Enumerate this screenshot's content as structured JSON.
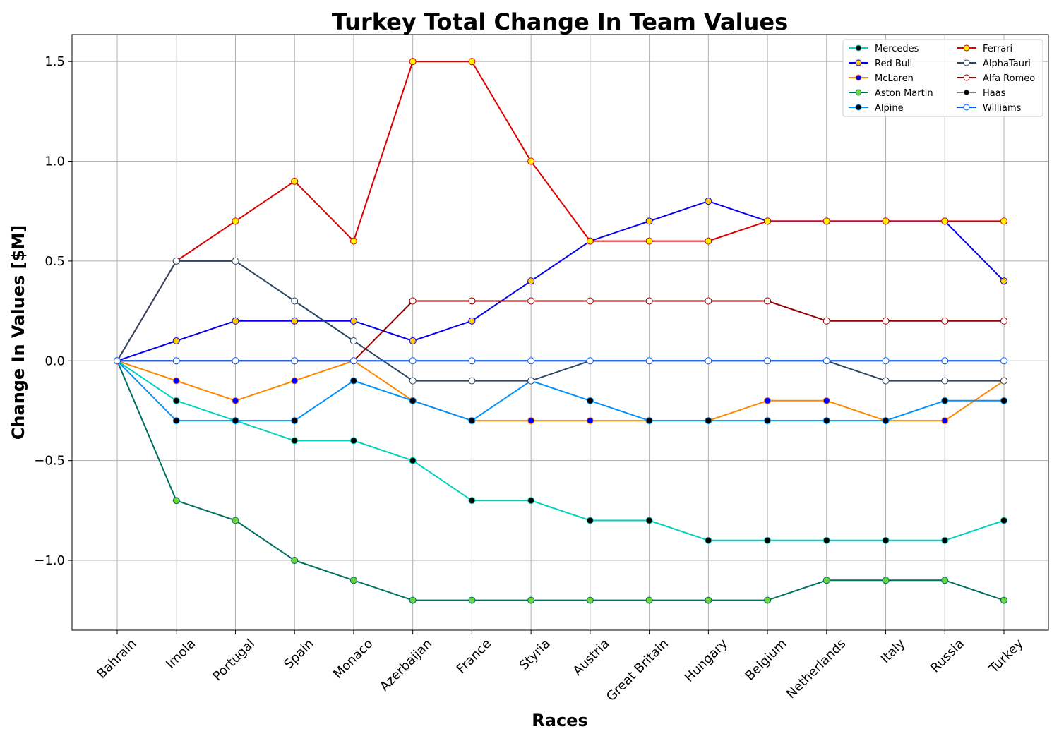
{
  "chart_data": {
    "type": "line",
    "title": "Turkey Total Change In Team Values",
    "xlabel": "Races",
    "ylabel": "Change In Values [$M]",
    "categories": [
      "Bahrain",
      "Imola",
      "Portugal",
      "Spain",
      "Monaco",
      "Azerbaijan",
      "France",
      "Styria",
      "Austria",
      "Great Britain",
      "Hungary",
      "Belgium",
      "Netherlands",
      "Italy",
      "Russia",
      "Turkey"
    ],
    "ylim": [
      -1.35,
      1.635
    ],
    "yticks": [
      {
        "value": 1.5,
        "label": "1.5"
      },
      {
        "value": 1.0,
        "label": "1.0"
      },
      {
        "value": 0.5,
        "label": "0.5"
      },
      {
        "value": 0.0,
        "label": "0.0"
      },
      {
        "value": -0.5,
        "label": "−0.5"
      },
      {
        "value": -1.0,
        "label": "−1.0"
      }
    ],
    "grid": true,
    "legend_position": "top-right",
    "legend_columns": 2,
    "series": [
      {
        "name": "Mercedes",
        "line_color": "#00d2be",
        "marker_fill": "#000000",
        "marker_edge": "#00d2be",
        "values": [
          0,
          -0.2,
          -0.3,
          -0.4,
          -0.4,
          -0.5,
          -0.7,
          -0.7,
          -0.8,
          -0.8,
          -0.9,
          -0.9,
          -0.9,
          -0.9,
          -0.9,
          -0.8
        ]
      },
      {
        "name": "Red Bull",
        "line_color": "#0600ef",
        "marker_fill": "#ffc906",
        "marker_edge": "#0600ef",
        "values": [
          0,
          0.1,
          0.2,
          0.2,
          0.2,
          0.1,
          0.2,
          0.4,
          0.6,
          0.7,
          0.8,
          0.7,
          0.7,
          0.7,
          0.7,
          0.4
        ]
      },
      {
        "name": "McLaren",
        "line_color": "#ff8700",
        "marker_fill": "#0000ff",
        "marker_edge": "#ff8700",
        "values": [
          0,
          -0.1,
          -0.2,
          -0.1,
          0.0,
          -0.2,
          -0.3,
          -0.3,
          -0.3,
          -0.3,
          -0.3,
          -0.2,
          -0.2,
          -0.3,
          -0.3,
          -0.1
        ]
      },
      {
        "name": "Aston Martin",
        "line_color": "#006f62",
        "marker_fill": "#6cd33b",
        "marker_edge": "#006f62",
        "values": [
          0,
          -0.7,
          -0.8,
          -1.0,
          -1.1,
          -1.2,
          -1.2,
          -1.2,
          -1.2,
          -1.2,
          -1.2,
          -1.2,
          -1.1,
          -1.1,
          -1.1,
          -1.2
        ]
      },
      {
        "name": "Alpine",
        "line_color": "#0090ff",
        "marker_fill": "#000000",
        "marker_edge": "#0090ff",
        "values": [
          0,
          -0.3,
          -0.3,
          -0.3,
          -0.1,
          -0.2,
          -0.3,
          -0.1,
          -0.2,
          -0.3,
          -0.3,
          -0.3,
          -0.3,
          -0.3,
          -0.2,
          -0.2
        ]
      },
      {
        "name": "Ferrari",
        "line_color": "#dc0000",
        "marker_fill": "#fff200",
        "marker_edge": "#dc0000",
        "values": [
          0,
          0.5,
          0.7,
          0.9,
          0.6,
          1.5,
          1.5,
          1.0,
          0.6,
          0.6,
          0.6,
          0.7,
          0.7,
          0.7,
          0.7,
          0.7
        ]
      },
      {
        "name": "AlphaTauri",
        "line_color": "#2b4562",
        "marker_fill": "#ffffff",
        "marker_edge": "#2b4562",
        "values": [
          0,
          0.5,
          0.5,
          0.3,
          0.1,
          -0.1,
          -0.1,
          -0.1,
          0.0,
          0.0,
          0.0,
          0.0,
          0.0,
          -0.1,
          -0.1,
          -0.1
        ]
      },
      {
        "name": "Alfa Romeo",
        "line_color": "#900000",
        "marker_fill": "#ffffff",
        "marker_edge": "#900000",
        "values": [
          0,
          0.0,
          0.0,
          0.0,
          0.0,
          0.3,
          0.3,
          0.3,
          0.3,
          0.3,
          0.3,
          0.3,
          0.2,
          0.2,
          0.2,
          0.2
        ]
      },
      {
        "name": "Haas",
        "line_color": "#808080",
        "marker_fill": "#000000",
        "marker_edge": "#ffffff",
        "values": [
          0,
          0.0,
          0.0,
          0.0,
          0.0,
          0.0,
          0.0,
          0.0,
          0.0,
          0.0,
          0.0,
          0.0,
          0.0,
          0.0,
          0.0,
          0.0
        ]
      },
      {
        "name": "Williams",
        "line_color": "#005aff",
        "marker_fill": "#ffffff",
        "marker_edge": "#005aff",
        "values": [
          0,
          0.0,
          0.0,
          0.0,
          0.0,
          0.0,
          0.0,
          0.0,
          0.0,
          0.0,
          0.0,
          0.0,
          0.0,
          0.0,
          0.0,
          0.0
        ]
      }
    ]
  }
}
